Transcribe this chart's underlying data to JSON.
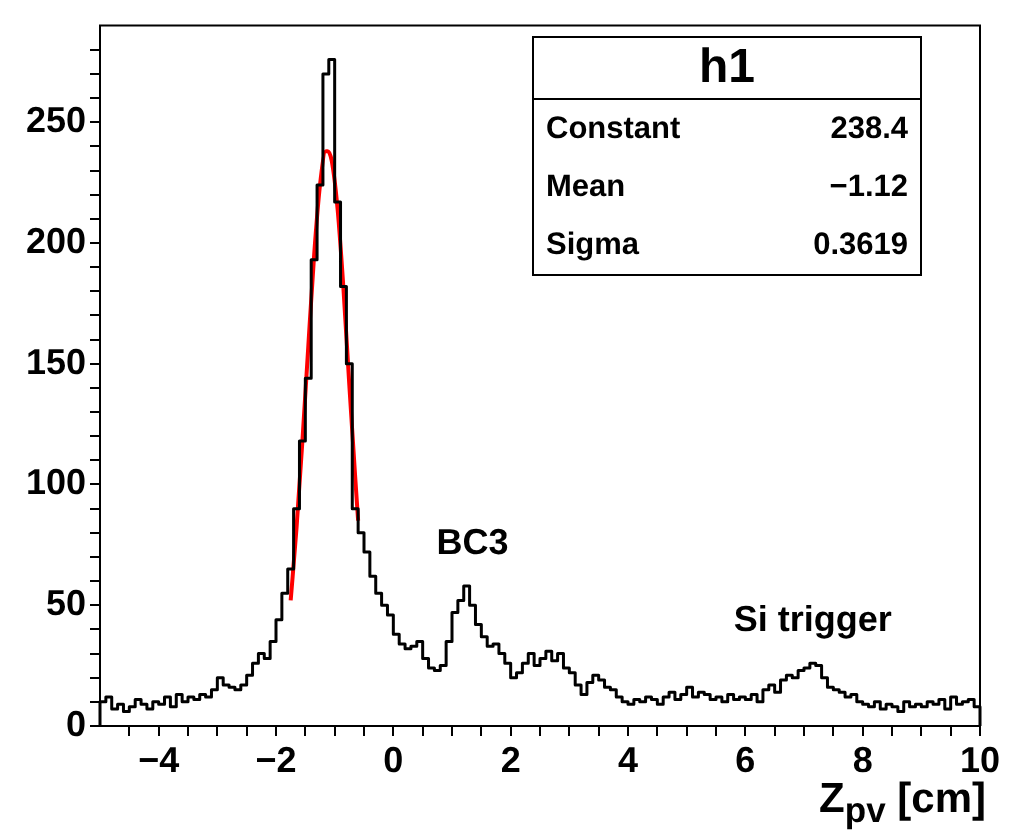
{
  "chart_data": {
    "type": "histogram",
    "xlabel": "Z$_{pv}$ [cm]",
    "bins": [
      -5,
      -4.9,
      -4.8,
      -4.7,
      -4.6,
      -4.5,
      -4.4,
      -4.3,
      -4.2,
      -4.1,
      -4,
      -3.9,
      -3.8,
      -3.7,
      -3.6,
      -3.5,
      -3.4,
      -3.3,
      -3.2,
      -3.1,
      -3,
      -2.9,
      -2.8,
      -2.7,
      -2.6,
      -2.5,
      -2.4,
      -2.3,
      -2.2,
      -2.1,
      -2,
      -1.9,
      -1.8,
      -1.7,
      -1.6,
      -1.5,
      -1.4,
      -1.3,
      -1.2,
      -1.1,
      -1,
      -0.9,
      -0.8,
      -0.7,
      -0.6,
      -0.5,
      -0.4,
      -0.3,
      -0.2,
      -0.1,
      0,
      0.1,
      0.2,
      0.3,
      0.4,
      0.5,
      0.6,
      0.7,
      0.8,
      0.9,
      1,
      1.1,
      1.2,
      1.3,
      1.4,
      1.5,
      1.6,
      1.7,
      1.8,
      1.9,
      2,
      2.1,
      2.2,
      2.3,
      2.4,
      2.5,
      2.6,
      2.7,
      2.8,
      2.9,
      3,
      3.1,
      3.2,
      3.3,
      3.4,
      3.5,
      3.6,
      3.7,
      3.8,
      3.9,
      4,
      4.1,
      4.2,
      4.3,
      4.4,
      4.5,
      4.6,
      4.7,
      4.8,
      4.9,
      5,
      5.1,
      5.2,
      5.3,
      5.4,
      5.5,
      5.6,
      5.7,
      5.8,
      5.9,
      6,
      6.1,
      6.2,
      6.3,
      6.4,
      6.5,
      6.6,
      6.7,
      6.8,
      6.9,
      7,
      7.1,
      7.2,
      7.3,
      7.4,
      7.5,
      7.6,
      7.7,
      7.8,
      7.9,
      8,
      8.1,
      8.2,
      8.3,
      8.4,
      8.5,
      8.6,
      8.7,
      8.8,
      8.9,
      9,
      9.1,
      9.2,
      9.3,
      9.4,
      9.5,
      9.6,
      9.7,
      9.8,
      9.9,
      10
    ],
    "series": [
      {
        "type": "histogram",
        "color": "#000000",
        "values": [
          10,
          12,
          7,
          9,
          6,
          8,
          11,
          9,
          7,
          10,
          9,
          12,
          8,
          13,
          10,
          12,
          11,
          13,
          12,
          15,
          20,
          17,
          16,
          15,
          17,
          21,
          26,
          30,
          28,
          35,
          44,
          55,
          65,
          90,
          118,
          144,
          193,
          224,
          270,
          276,
          217,
          182,
          150,
          90,
          80,
          72,
          62,
          55,
          50,
          46,
          38,
          34,
          32,
          33,
          35,
          28,
          24,
          23,
          25,
          35,
          47,
          52,
          58,
          50,
          42,
          37,
          33,
          34,
          30,
          26,
          20,
          22,
          26,
          30,
          25,
          28,
          31,
          27,
          30,
          24,
          22,
          17,
          13,
          18,
          21,
          19,
          16,
          15,
          12,
          10,
          9,
          11,
          10,
          12,
          11,
          9,
          12,
          14,
          11,
          13,
          16,
          12,
          14,
          13,
          11,
          12,
          10,
          13,
          11,
          12,
          11,
          13,
          10,
          15,
          17,
          14,
          19,
          21,
          20,
          23,
          24,
          26,
          25,
          20,
          16,
          15,
          14,
          12,
          13,
          10,
          9,
          8,
          10,
          7,
          9,
          8,
          6,
          10,
          8,
          9,
          8,
          10,
          9,
          11,
          7,
          12,
          9,
          10,
          11,
          8
        ]
      },
      {
        "type": "line",
        "color": "#ff0000",
        "x": [
          -1.75,
          -1.65,
          -1.55,
          -1.45,
          -1.35,
          -1.25,
          -1.15,
          -1.12,
          -1.05,
          -0.95,
          -0.85,
          -0.75,
          -0.65,
          -0.6
        ],
        "values": [
          52,
          82,
          118,
          157,
          195,
          224,
          238,
          238,
          234,
          214,
          181,
          141,
          103,
          85
        ]
      }
    ],
    "xlim": [
      -5,
      10
    ],
    "xticks": [
      {
        "value": -4.5,
        "label": null
      },
      {
        "value": -4,
        "label": "−4"
      },
      {
        "value": -3.5,
        "label": null
      },
      {
        "value": -3,
        "label": null
      },
      {
        "value": -2.5,
        "label": null
      },
      {
        "value": -2,
        "label": "−2"
      },
      {
        "value": -1.5,
        "label": null
      },
      {
        "value": -1,
        "label": null
      },
      {
        "value": -0.5,
        "label": null
      },
      0,
      {
        "value": 0.5,
        "label": null
      },
      {
        "value": 1,
        "label": null
      },
      {
        "value": 1.5,
        "label": null
      },
      2,
      {
        "value": 2.5,
        "label": null
      },
      {
        "value": 3,
        "label": null
      },
      {
        "value": 3.5,
        "label": null
      },
      4,
      {
        "value": 4.5,
        "label": null
      },
      {
        "value": 5,
        "label": null
      },
      {
        "value": 5.5,
        "label": null
      },
      6,
      {
        "value": 6.5,
        "label": null
      },
      {
        "value": 7,
        "label": null
      },
      {
        "value": 7.5,
        "label": null
      },
      8,
      {
        "value": 8.5,
        "label": null
      },
      {
        "value": 9,
        "label": null
      },
      {
        "value": 9.5,
        "label": null
      },
      10
    ],
    "ylim": [
      0,
      290
    ],
    "yticks": [
      0,
      {
        "value": 10,
        "label": null
      },
      {
        "value": 20,
        "label": null
      },
      {
        "value": 30,
        "label": null
      },
      {
        "value": 40,
        "label": null
      },
      50,
      {
        "value": 60,
        "label": null
      },
      {
        "value": 70,
        "label": null
      },
      {
        "value": 80,
        "label": null
      },
      {
        "value": 90,
        "label": null
      },
      100,
      {
        "value": 110,
        "label": null
      },
      {
        "value": 120,
        "label": null
      },
      {
        "value": 130,
        "label": null
      },
      {
        "value": 140,
        "label": null
      },
      150,
      {
        "value": 160,
        "label": null
      },
      {
        "value": 170,
        "label": null
      },
      {
        "value": 180,
        "label": null
      },
      {
        "value": 190,
        "label": null
      },
      200,
      {
        "value": 210,
        "label": null
      },
      {
        "value": 220,
        "label": null
      },
      {
        "value": 230,
        "label": null
      },
      {
        "value": 240,
        "label": null
      },
      250,
      {
        "value": 260,
        "label": null
      },
      {
        "value": 270,
        "label": null
      },
      {
        "value": 280,
        "label": null
      }
    ],
    "marker": "none",
    "grid": false,
    "legend": false,
    "annotations": [
      {
        "text": "BC3",
        "x": 1.35,
        "y": 58
      },
      {
        "text": "Si trigger",
        "x": 7.15,
        "y": 26
      },
      "h1",
      "Constant",
      "238.4",
      "Mean",
      "−1.12",
      "Sigma",
      "0.3619"
    ]
  }
}
